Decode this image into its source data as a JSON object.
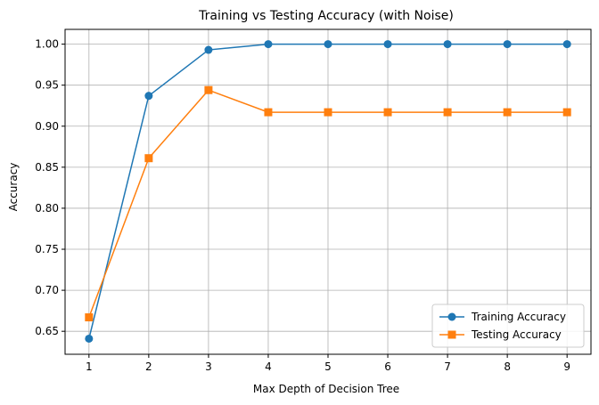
{
  "chart_data": {
    "type": "line",
    "title": "Training vs Testing Accuracy (with Noise)",
    "xlabel": "Max Depth of Decision Tree",
    "ylabel": "Accuracy",
    "x": [
      1,
      2,
      3,
      4,
      5,
      6,
      7,
      8,
      9
    ],
    "xlim": [
      0.6,
      9.4
    ],
    "ylim": [
      0.622,
      1.018
    ],
    "xticks": [
      1,
      2,
      3,
      4,
      5,
      6,
      7,
      8,
      9
    ],
    "yticks": [
      0.65,
      0.7,
      0.75,
      0.8,
      0.85,
      0.9,
      0.95,
      1.0
    ],
    "ytick_labels": [
      "0.65",
      "0.70",
      "0.75",
      "0.80",
      "0.85",
      "0.90",
      "0.95",
      "1.00"
    ],
    "grid": true,
    "legend_position": "lower-right",
    "series": [
      {
        "name": "Training Accuracy",
        "color": "#1f77b4",
        "marker": "circle",
        "values": [
          0.641,
          0.937,
          0.993,
          1.0,
          1.0,
          1.0,
          1.0,
          1.0,
          1.0
        ]
      },
      {
        "name": "Testing Accuracy",
        "color": "#ff7f0e",
        "marker": "square",
        "values": [
          0.667,
          0.861,
          0.944,
          0.917,
          0.917,
          0.917,
          0.917,
          0.917,
          0.917
        ]
      }
    ]
  }
}
